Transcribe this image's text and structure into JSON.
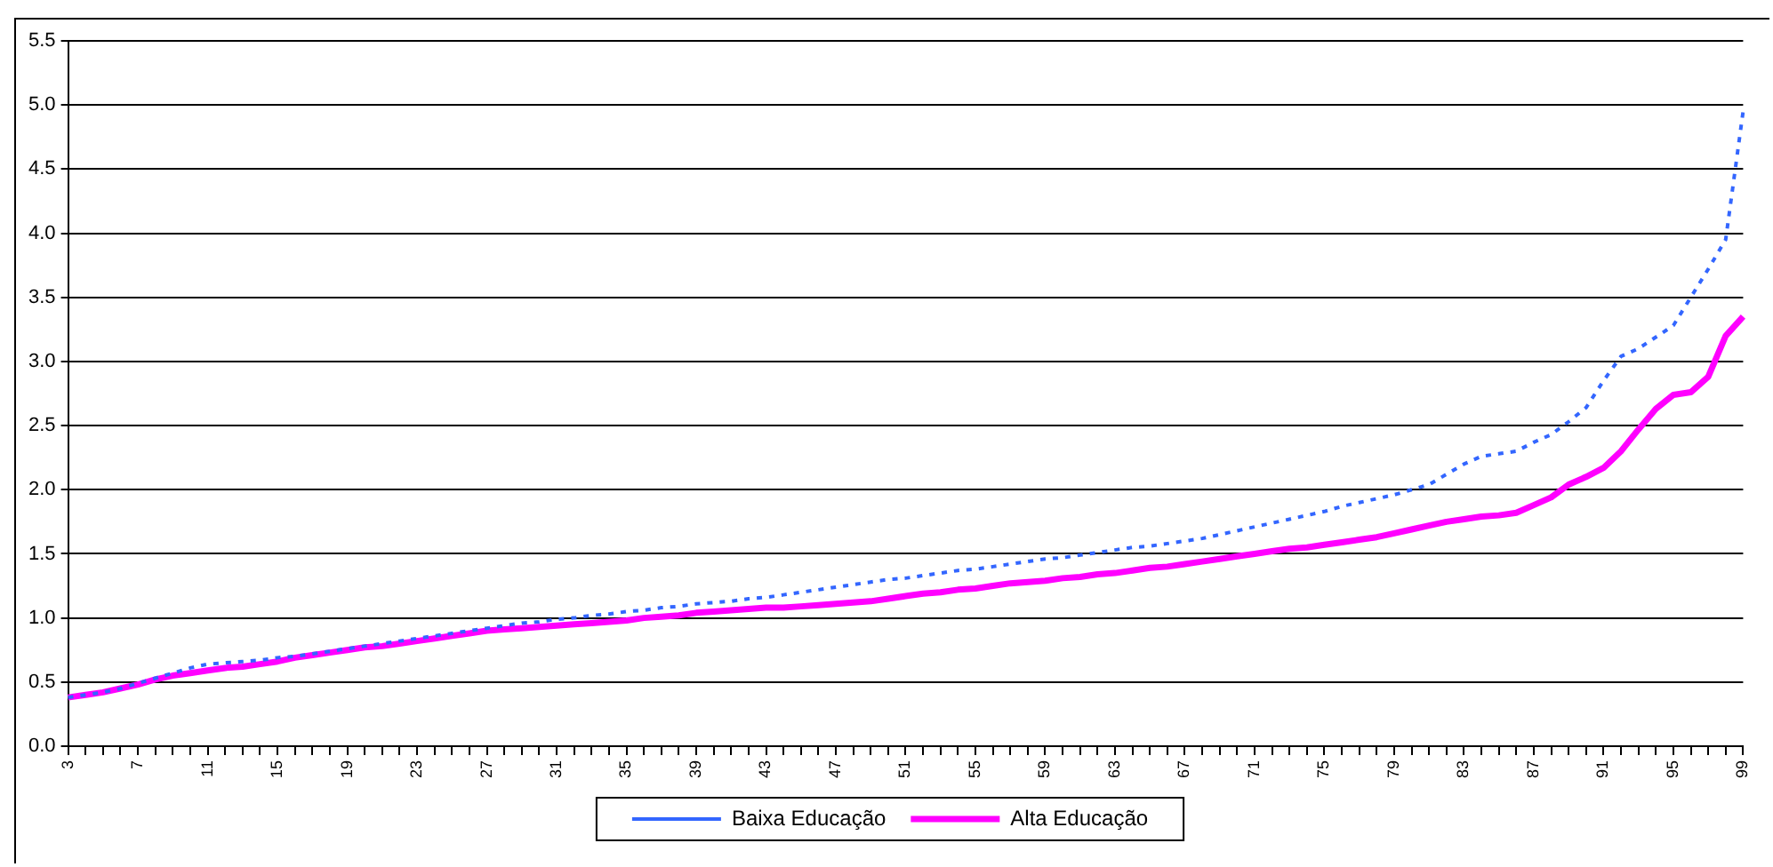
{
  "chart_data": {
    "type": "line",
    "categories": [
      "3",
      null,
      null,
      null,
      "7",
      null,
      null,
      null,
      "11",
      null,
      null,
      null,
      "15",
      null,
      null,
      null,
      "19",
      null,
      null,
      null,
      "23",
      null,
      null,
      null,
      "27",
      null,
      null,
      null,
      "31",
      null,
      null,
      null,
      "35",
      null,
      null,
      null,
      "39",
      null,
      null,
      null,
      "43",
      null,
      null,
      null,
      "47",
      null,
      null,
      null,
      "51",
      null,
      null,
      null,
      "55",
      null,
      null,
      null,
      "59",
      null,
      null,
      null,
      "63",
      null,
      null,
      null,
      "67",
      null,
      null,
      null,
      "71",
      null,
      null,
      null,
      "75",
      null,
      null,
      null,
      "79",
      null,
      null,
      null,
      "83",
      null,
      null,
      null,
      "87",
      null,
      null,
      null,
      "91",
      null,
      null,
      null,
      "95",
      null,
      null,
      null,
      "99"
    ],
    "series": [
      {
        "name": "Baixa Educação",
        "color": "#3366ff",
        "line_style": "dashed",
        "values": [
          0.38,
          0.4,
          0.42,
          0.45,
          0.49,
          0.53,
          0.57,
          0.61,
          0.64,
          0.65,
          0.66,
          0.67,
          0.69,
          0.7,
          0.72,
          0.74,
          0.76,
          0.78,
          0.8,
          0.82,
          0.84,
          0.86,
          0.88,
          0.9,
          0.92,
          0.94,
          0.96,
          0.97,
          0.99,
          1.0,
          1.02,
          1.03,
          1.05,
          1.06,
          1.08,
          1.09,
          1.11,
          1.12,
          1.13,
          1.15,
          1.16,
          1.18,
          1.2,
          1.22,
          1.24,
          1.26,
          1.28,
          1.3,
          1.31,
          1.33,
          1.35,
          1.37,
          1.38,
          1.4,
          1.42,
          1.44,
          1.46,
          1.47,
          1.49,
          1.51,
          1.53,
          1.55,
          1.56,
          1.58,
          1.6,
          1.62,
          1.65,
          1.68,
          1.71,
          1.74,
          1.77,
          1.8,
          1.83,
          1.87,
          1.9,
          1.93,
          1.96,
          2.0,
          2.04,
          2.12,
          2.2,
          2.26,
          2.28,
          2.3,
          2.37,
          2.43,
          2.53,
          2.64,
          2.85,
          3.04,
          3.1,
          3.19,
          3.28,
          3.5,
          3.72,
          3.95,
          4.95
        ]
      },
      {
        "name": "Alta Educação",
        "color": "#ff00ff",
        "line_style": "solid",
        "values": [
          0.38,
          0.4,
          0.42,
          0.45,
          0.48,
          0.52,
          0.55,
          0.57,
          0.59,
          0.61,
          0.62,
          0.64,
          0.66,
          0.69,
          0.71,
          0.73,
          0.75,
          0.77,
          0.78,
          0.8,
          0.82,
          0.84,
          0.86,
          0.88,
          0.9,
          0.91,
          0.92,
          0.93,
          0.94,
          0.95,
          0.96,
          0.97,
          0.98,
          1.0,
          1.01,
          1.02,
          1.04,
          1.05,
          1.06,
          1.07,
          1.08,
          1.08,
          1.09,
          1.1,
          1.11,
          1.12,
          1.13,
          1.15,
          1.17,
          1.19,
          1.2,
          1.22,
          1.23,
          1.25,
          1.27,
          1.28,
          1.29,
          1.31,
          1.32,
          1.34,
          1.35,
          1.37,
          1.39,
          1.4,
          1.42,
          1.44,
          1.46,
          1.48,
          1.5,
          1.52,
          1.54,
          1.55,
          1.57,
          1.59,
          1.61,
          1.63,
          1.66,
          1.69,
          1.72,
          1.75,
          1.77,
          1.79,
          1.8,
          1.82,
          1.88,
          1.94,
          2.04,
          2.1,
          2.17,
          2.3,
          2.47,
          2.63,
          2.74,
          2.76,
          2.88,
          3.2,
          3.35
        ]
      }
    ],
    "ylim": [
      0,
      5.5
    ],
    "yticks": [
      {
        "value": 0,
        "label": "0.0"
      },
      {
        "value": 0.5,
        "label": "0.5"
      },
      {
        "value": 1,
        "label": "1.0"
      },
      {
        "value": 1.5,
        "label": "1.5"
      },
      {
        "value": 2,
        "label": "2.0"
      },
      {
        "value": 2.5,
        "label": "2.5"
      },
      {
        "value": 3,
        "label": "3.0"
      },
      {
        "value": 3.5,
        "label": "3.5"
      },
      {
        "value": 4,
        "label": "4.0"
      },
      {
        "value": 4.5,
        "label": "4.5"
      },
      {
        "value": 5,
        "label": "5.0"
      },
      {
        "value": 5.5,
        "label": "5.5"
      }
    ],
    "grid": "y",
    "legend": "bottom",
    "marker": "none"
  }
}
